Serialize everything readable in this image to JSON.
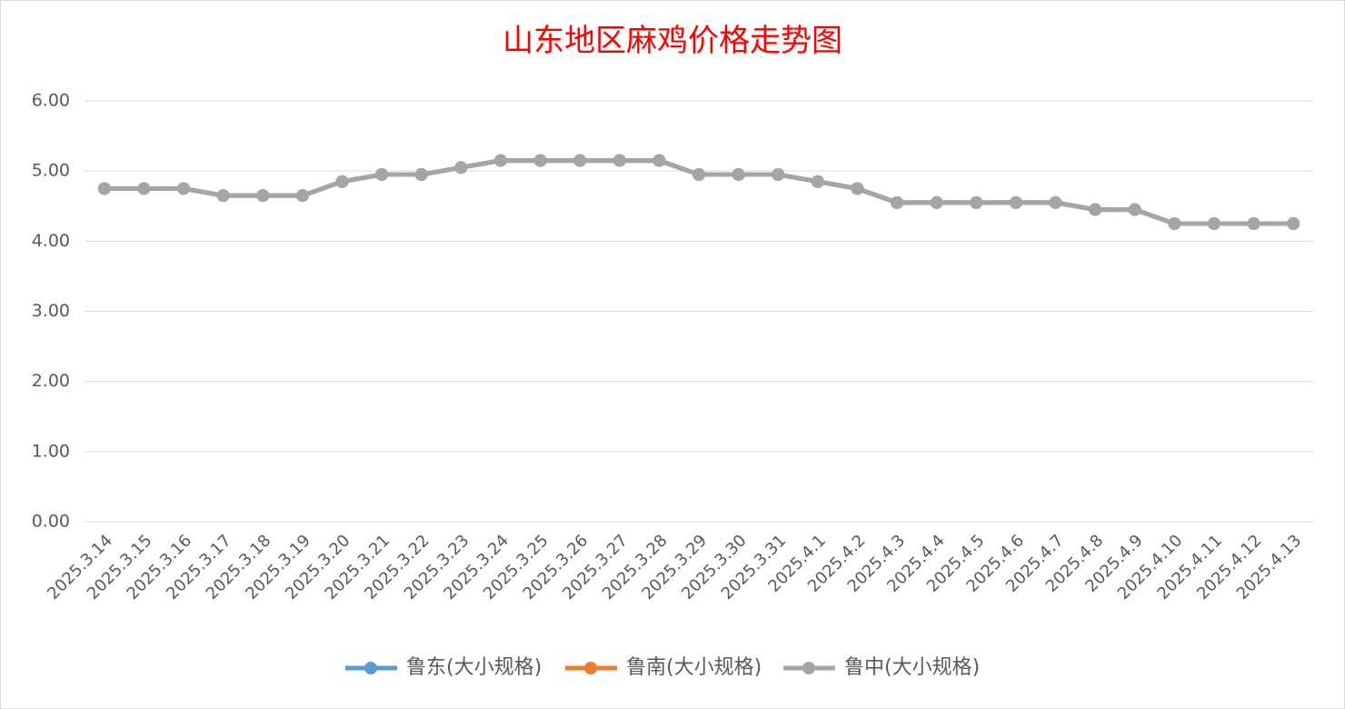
{
  "chart_data": {
    "type": "line",
    "title": "山东地区麻鸡价格走势图",
    "categories": [
      "2025.3.14",
      "2025.3.15",
      "2025.3.16",
      "2025.3.17",
      "2025.3.18",
      "2025.3.19",
      "2025.3.20",
      "2025.3.21",
      "2025.3.22",
      "2025.3.23",
      "2025.3.24",
      "2025.3.25",
      "2025.3.26",
      "2025.3.27",
      "2025.3.28",
      "2025.3.29",
      "2025.3.30",
      "2025.3.31",
      "2025.4.1",
      "2025.4.2",
      "2025.4.3",
      "2025.4.4",
      "2025.4.5",
      "2025.4.6",
      "2025.4.7",
      "2025.4.8",
      "2025.4.9",
      "2025.4.10",
      "2025.4.11",
      "2025.4.12",
      "2025.4.13"
    ],
    "series": [
      {
        "name": "鲁东(大小规格)",
        "color": "#5b9bd5",
        "values": [
          4.75,
          4.75,
          4.75,
          4.65,
          4.65,
          4.65,
          4.85,
          4.95,
          4.95,
          5.05,
          5.15,
          5.15,
          5.15,
          5.15,
          5.15,
          4.95,
          4.95,
          4.95,
          4.85,
          4.75,
          4.55,
          4.55,
          4.55,
          4.55,
          4.55,
          4.45,
          4.45,
          4.25,
          4.25,
          4.25,
          4.25
        ]
      },
      {
        "name": "鲁南(大小规格)",
        "color": "#ed7d31",
        "values": [
          4.75,
          4.75,
          4.75,
          4.65,
          4.65,
          4.65,
          4.85,
          4.95,
          4.95,
          5.05,
          5.15,
          5.15,
          5.15,
          5.15,
          5.15,
          4.95,
          4.95,
          4.95,
          4.85,
          4.75,
          4.55,
          4.55,
          4.55,
          4.55,
          4.55,
          4.45,
          4.45,
          4.25,
          4.25,
          4.25,
          4.25
        ]
      },
      {
        "name": "鲁中(大小规格)",
        "color": "#a5a5a5",
        "values": [
          4.75,
          4.75,
          4.75,
          4.65,
          4.65,
          4.65,
          4.85,
          4.95,
          4.95,
          5.05,
          5.15,
          5.15,
          5.15,
          5.15,
          5.15,
          4.95,
          4.95,
          4.95,
          4.85,
          4.75,
          4.55,
          4.55,
          4.55,
          4.55,
          4.55,
          4.45,
          4.45,
          4.25,
          4.25,
          4.25,
          4.25
        ]
      }
    ],
    "ylim": [
      0,
      6
    ],
    "yticks": [
      {
        "value": 0,
        "label": "0.00"
      },
      {
        "value": 1,
        "label": "1.00"
      },
      {
        "value": 2,
        "label": "2.00"
      },
      {
        "value": 3,
        "label": "3.00"
      },
      {
        "value": 4,
        "label": "4.00"
      },
      {
        "value": 5,
        "label": "5.00"
      },
      {
        "value": 6,
        "label": "6.00"
      }
    ],
    "grid": true,
    "legend": "bottom"
  }
}
